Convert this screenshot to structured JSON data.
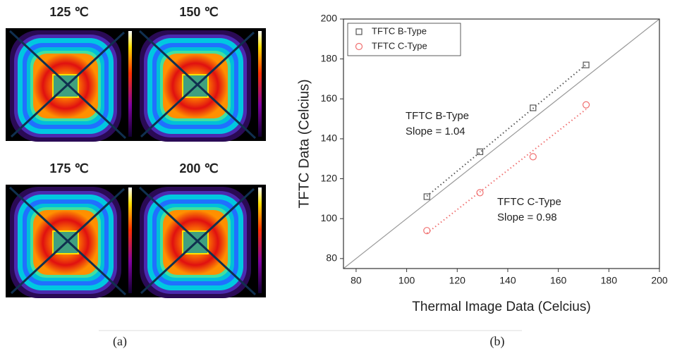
{
  "thermal_images": {
    "labels": [
      "125 ℃",
      "150 ℃",
      "175 ℃",
      "200 ℃"
    ]
  },
  "captions": [
    "(a)",
    "(b)"
  ],
  "chart_data": {
    "type": "scatter",
    "x_label": "Thermal Image Data (Celcius)",
    "y_label": "TFTC Data (Celcius)",
    "xlim": [
      75,
      200
    ],
    "xticks": [
      80,
      100,
      120,
      140,
      160,
      180,
      200
    ],
    "ylim": [
      75,
      200
    ],
    "yticks": [
      80,
      100,
      120,
      140,
      160,
      180,
      200
    ],
    "legend": "upper-left",
    "series": [
      {
        "name": "TFTC B-Type",
        "color": "#555555",
        "marker": "square",
        "x": [
          108,
          129,
          150,
          171
        ],
        "values": [
          111,
          133.5,
          155.5,
          177
        ]
      },
      {
        "name": "TFTC C-Type",
        "color": "#f07070",
        "marker": "circle",
        "x": [
          108,
          129,
          150,
          171
        ],
        "values": [
          94,
          113,
          131,
          157
        ]
      }
    ],
    "annotations": [
      {
        "lines": [
          "TFTC B-Type",
          "Slope = 1.04"
        ]
      },
      {
        "lines": [
          "TFTC C-Type",
          "Slope = 0.98"
        ]
      }
    ]
  }
}
